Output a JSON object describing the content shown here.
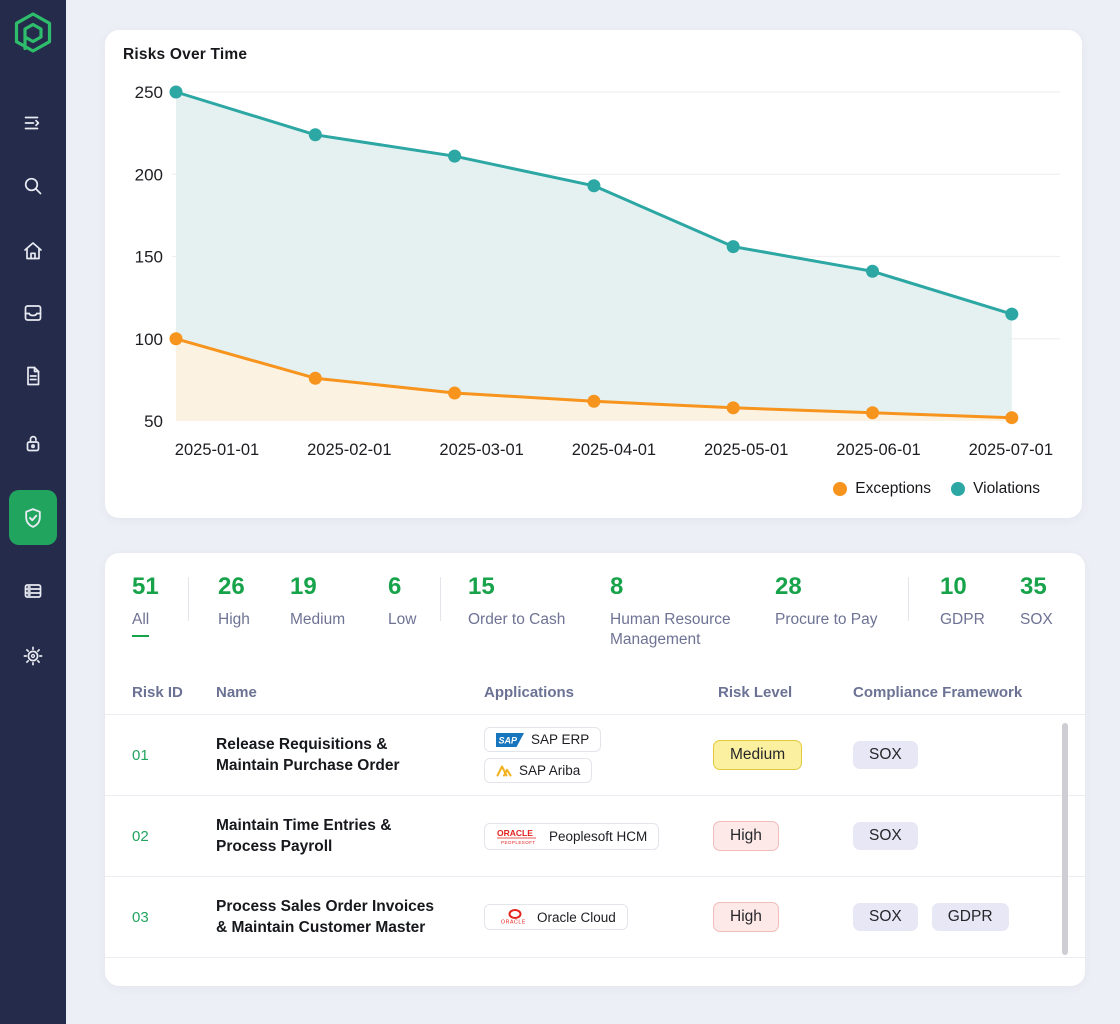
{
  "sidebar": {
    "logo_icon": "hexagon-p-logo",
    "icons": [
      "collapse-menu",
      "search",
      "home",
      "inbox",
      "document",
      "lock",
      "shield-check",
      "storage",
      "settings"
    ],
    "active_icon": "shield-check"
  },
  "chart_card": {
    "title": "Risks Over Time",
    "legend": [
      {
        "label": "Exceptions"
      },
      {
        "label": "Violations"
      }
    ]
  },
  "chart_data": {
    "type": "area",
    "title": "Risks Over Time",
    "x": [
      "2025-01-01",
      "2025-02-01",
      "2025-03-01",
      "2025-04-01",
      "2025-05-01",
      "2025-06-01",
      "2025-07-01"
    ],
    "series": [
      {
        "name": "Exceptions",
        "color": "#F7941E",
        "fill": "#FCF2E2",
        "values": [
          100,
          76,
          67,
          62,
          58,
          55,
          52
        ]
      },
      {
        "name": "Violations",
        "color": "#2CA7A3",
        "fill": "#E4F1F0",
        "values": [
          250,
          224,
          211,
          193,
          156,
          141,
          115
        ]
      }
    ],
    "ylim": [
      50,
      250
    ],
    "yticks": [
      50,
      100,
      150,
      200,
      250
    ],
    "grid": true,
    "legend_position": "bottom-right"
  },
  "stats": {
    "items": [
      {
        "value": "51",
        "label": "All",
        "active": true
      },
      {
        "value": "26",
        "label": "High"
      },
      {
        "value": "19",
        "label": "Medium"
      },
      {
        "value": "6",
        "label": "Low"
      },
      {
        "value": "15",
        "label": "Order to Cash"
      },
      {
        "value": "8",
        "label": "Human Resource Management"
      },
      {
        "value": "28",
        "label": "Procure to Pay"
      },
      {
        "value": "10",
        "label": "GDPR"
      },
      {
        "value": "35",
        "label": "SOX"
      }
    ]
  },
  "table": {
    "columns": [
      "Risk ID",
      "Name",
      "Applications",
      "Risk Level",
      "Compliance Framework"
    ],
    "rows": [
      {
        "id": "01",
        "name": "Release Requisitions & Maintain Purchase Order",
        "apps": [
          {
            "name": "SAP ERP",
            "logo": "sap"
          },
          {
            "name": "SAP Ariba",
            "logo": "sap-ariba"
          }
        ],
        "risk_level": "Medium",
        "frameworks": [
          "SOX"
        ]
      },
      {
        "id": "02",
        "name": "Maintain Time Entries & Process Payroll",
        "apps": [
          {
            "name": "Peoplesoft HCM",
            "logo": "oracle-peoplesoft"
          }
        ],
        "risk_level": "High",
        "frameworks": [
          "SOX"
        ]
      },
      {
        "id": "03",
        "name": "Process Sales Order Invoices & Maintain Customer Master",
        "apps": [
          {
            "name": "Oracle Cloud",
            "logo": "oracle-cloud"
          }
        ],
        "risk_level": "High",
        "frameworks": [
          "SOX",
          "GDPR"
        ]
      }
    ]
  },
  "colors": {
    "accent_green": "#17A34A",
    "sidebar_bg": "#252B4B",
    "active_nav_green": "#21A55E",
    "logo_green": "#2EBD6B",
    "exceptions_orange": "#F7941E",
    "violations_teal": "#2CA7A3",
    "badge_medium_bg": "#FAF0A0",
    "badge_high_bg": "#FCE9E8",
    "badge_framework_bg": "#E7E7F5"
  }
}
